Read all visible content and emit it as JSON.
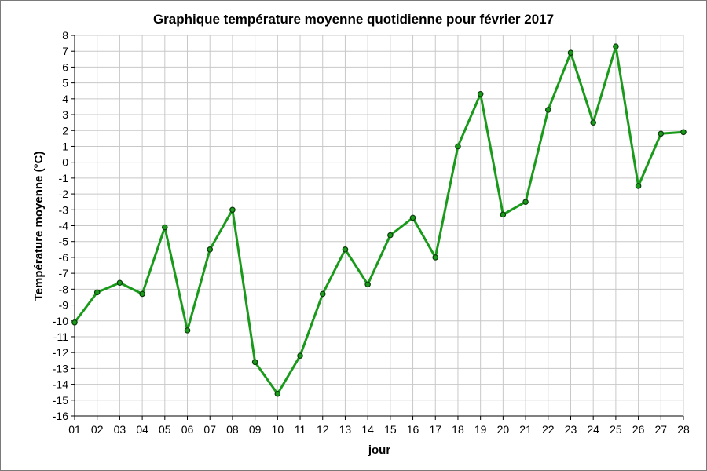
{
  "chart_data": {
    "type": "line",
    "title": "Graphique température moyenne quotidienne pour février 2017",
    "xlabel": "jour",
    "ylabel": "Température moyenne (°C)",
    "ylim": [
      -16,
      8
    ],
    "grid": true,
    "categories": [
      "01",
      "02",
      "03",
      "04",
      "05",
      "06",
      "07",
      "08",
      "09",
      "10",
      "11",
      "12",
      "13",
      "14",
      "15",
      "16",
      "17",
      "18",
      "19",
      "20",
      "21",
      "22",
      "23",
      "24",
      "25",
      "26",
      "27",
      "28"
    ],
    "y_ticks": [
      "8",
      "7",
      "6",
      "5",
      "4",
      "3",
      "2",
      "1",
      "0",
      "-1",
      "-2",
      "-3",
      "-4",
      "-5",
      "-6",
      "-7",
      "-8",
      "-9",
      "-10",
      "-11",
      "-12",
      "-13",
      "-14",
      "-15",
      "-16"
    ],
    "series": [
      {
        "values": [
          -10.1,
          -8.2,
          -7.6,
          -8.3,
          -4.1,
          -10.6,
          -5.5,
          -3.0,
          -12.6,
          -14.6,
          -12.2,
          -8.3,
          -5.5,
          -7.7,
          -4.6,
          -3.5,
          -6.0,
          1.0,
          4.3,
          -3.3,
          -2.5,
          3.3,
          6.9,
          2.5,
          7.3,
          -1.5,
          1.8,
          1.9
        ],
        "color": "#1a9a1a"
      }
    ]
  }
}
